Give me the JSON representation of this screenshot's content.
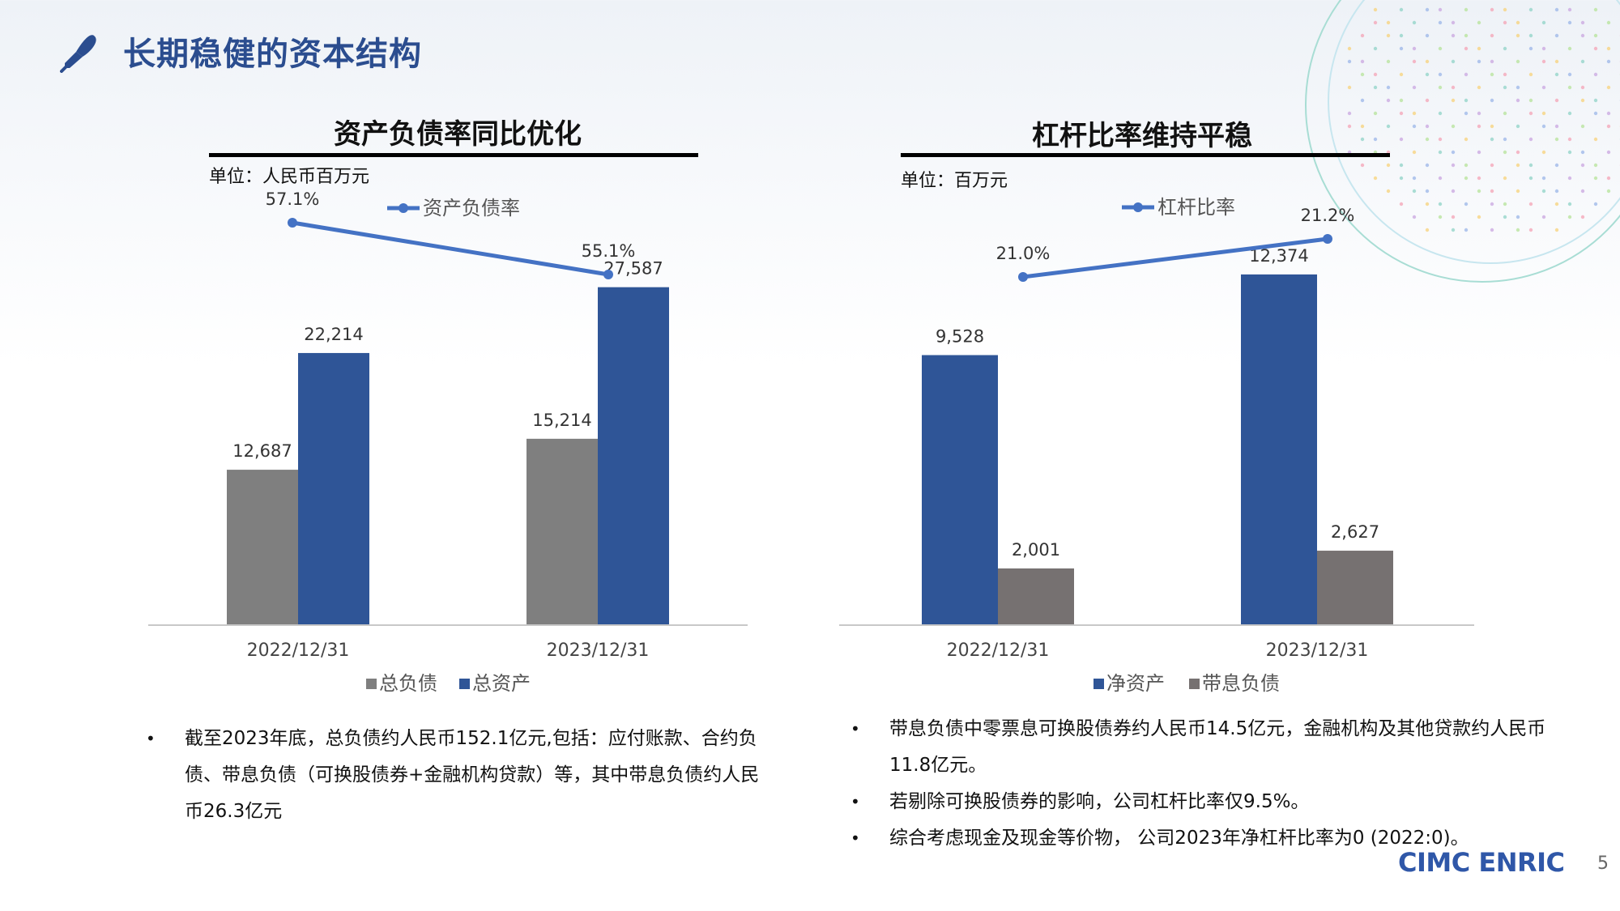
{
  "page": {
    "title": "长期稳健的资本结构",
    "brand": "CIMC ENRIC",
    "page_number": "5"
  },
  "colors": {
    "title_blue": "#2b4d8f",
    "bar_blue": "#2f5597",
    "bar_gray": "#7f7f7f",
    "bar_dark_gray": "#767171",
    "line_blue": "#4472c4"
  },
  "chart_data": [
    {
      "type": "bar",
      "title": "资产负债率同比优化",
      "unit": "单位：人民币百万元",
      "categories": [
        "2022/12/31",
        "2023/12/31"
      ],
      "series": [
        {
          "name": "总负债",
          "values": [
            12687,
            15214
          ],
          "labels": [
            "12,687",
            "15,214"
          ],
          "color": "#7f7f7f"
        },
        {
          "name": "总资产",
          "values": [
            22214,
            27587
          ],
          "labels": [
            "22,214",
            "27,587"
          ],
          "color": "#2f5597"
        }
      ],
      "line": {
        "name": "资产负债率",
        "values": [
          57.1,
          55.1
        ],
        "labels": [
          "57.1%",
          "55.1%"
        ],
        "color": "#4472c4"
      },
      "legend": "bottom",
      "grid": false
    },
    {
      "type": "bar",
      "title": "杠杆比率维持平稳",
      "unit": "单位：百万元",
      "categories": [
        "2022/12/31",
        "2023/12/31"
      ],
      "series": [
        {
          "name": "净资产",
          "values": [
            9528,
            12374
          ],
          "labels": [
            "9,528",
            "12,374"
          ],
          "color": "#2f5597"
        },
        {
          "name": "带息负债",
          "values": [
            2001,
            2627
          ],
          "labels": [
            "2,001",
            "2,627"
          ],
          "color": "#767171"
        }
      ],
      "line": {
        "name": "杠杆比率",
        "values": [
          21.0,
          21.2
        ],
        "labels": [
          "21.0%",
          "21.2%"
        ],
        "color": "#4472c4"
      },
      "legend": "bottom",
      "grid": false
    }
  ],
  "notes_left": [
    "截至2023年底，总负债约人民币152.1亿元,包括：应付账款、合约负债、带息负债（可换股债券+金融机构贷款）等，其中带息负债约人民币26.3亿元"
  ],
  "notes_right": [
    "带息负债中零票息可换股债券约人民币14.5亿元，金融机构及其他贷款约人民币11.8亿元。",
    "若剔除可换股债券的影响，公司杠杆比率仅9.5%。",
    "综合考虑现金及现金等价物， 公司2023年净杠杆比率为0 (2022:0)。"
  ]
}
